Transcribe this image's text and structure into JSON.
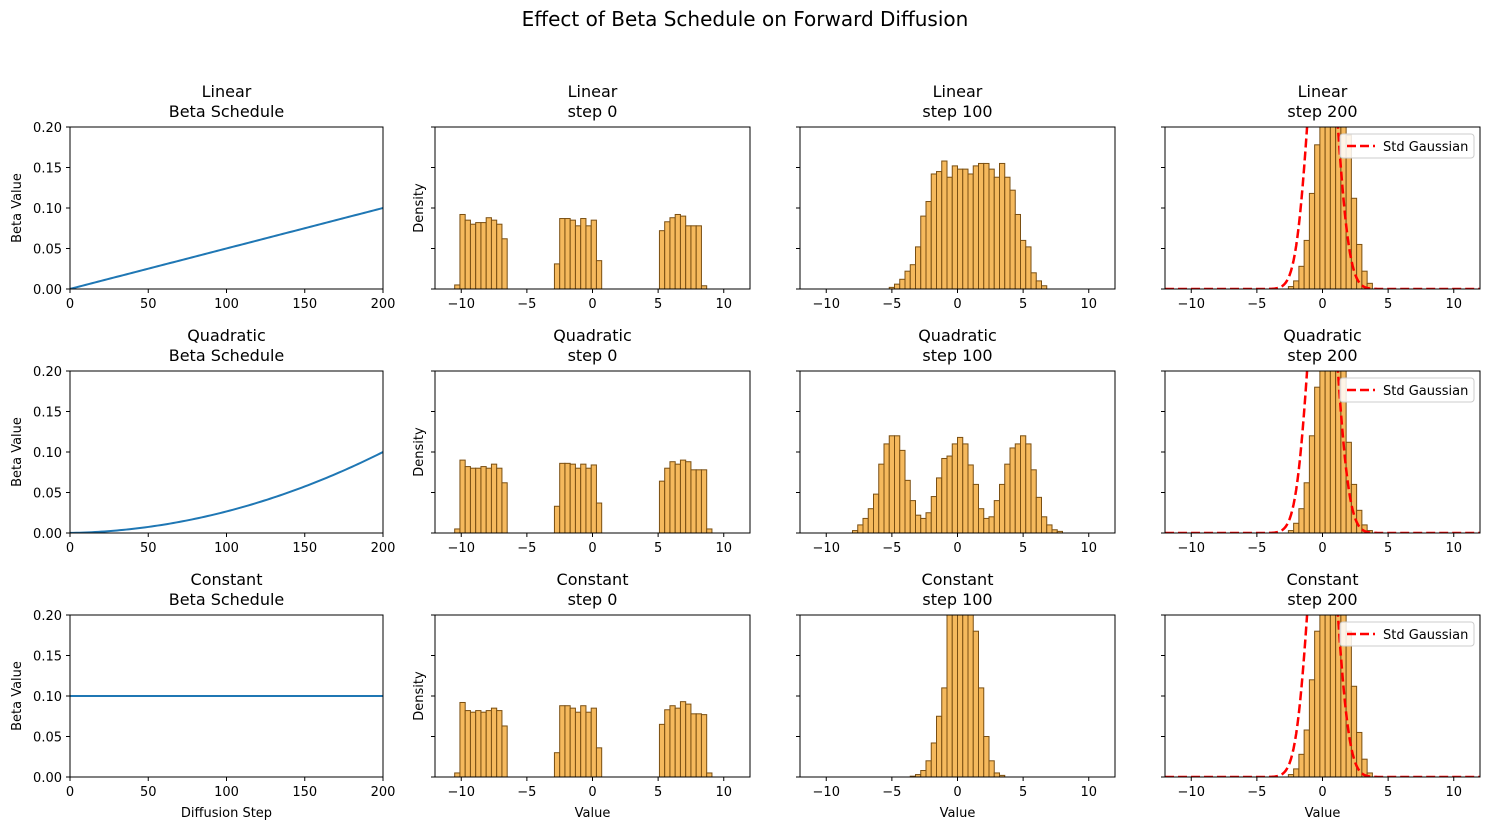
{
  "suptitle": "Effect of Beta Schedule on Forward Diffusion",
  "rows": [
    {
      "schedule": "Linear",
      "beta_title": "Linear\nBeta Schedule",
      "hist_titles": [
        "Linear\nstep 0",
        "Linear\nstep 100",
        "Linear\nstep 200"
      ]
    },
    {
      "schedule": "Quadratic",
      "beta_title": "Quadratic\nBeta Schedule",
      "hist_titles": [
        "Quadratic\nstep 0",
        "Quadratic\nstep 100",
        "Quadratic\nstep 200"
      ]
    },
    {
      "schedule": "Constant",
      "beta_title": "Constant\nBeta Schedule",
      "hist_titles": [
        "Constant\nstep 0",
        "Constant\nstep 100",
        "Constant\nstep 200"
      ]
    }
  ],
  "labels": {
    "beta_ylabel": "Beta Value",
    "hist_ylabel": "Density",
    "beta_xlabel": "Diffusion Step",
    "hist_xlabel": "Value",
    "legend_label": "Std Gaussian"
  },
  "colors": {
    "beta_line": "#1f77b4",
    "hist_fill": "#f5b95d",
    "hist_edge": "#7a4f12",
    "gaussian": "#ff0000"
  },
  "chart_data": [
    {
      "type": "line",
      "name": "Linear beta schedule",
      "x": [
        0,
        200
      ],
      "xlim": [
        0,
        200
      ],
      "ylim": [
        0,
        0.2
      ],
      "xticks": [
        "0",
        "50",
        "100",
        "150",
        "200"
      ],
      "yticks": [
        "0.00",
        "0.05",
        "0.10",
        "0.15",
        "0.20"
      ],
      "formula": "linear",
      "beta_start": 0.0001,
      "beta_end": 0.1
    },
    {
      "type": "line",
      "name": "Quadratic beta schedule",
      "x": [
        0,
        200
      ],
      "xlim": [
        0,
        200
      ],
      "ylim": [
        0,
        0.2
      ],
      "xticks": [
        "0",
        "50",
        "100",
        "150",
        "200"
      ],
      "yticks": [
        "0.00",
        "0.05",
        "0.10",
        "0.15",
        "0.20"
      ],
      "formula": "quadratic",
      "beta_start": 0.0001,
      "beta_end": 0.1
    },
    {
      "type": "line",
      "name": "Constant beta schedule",
      "x": [
        0,
        200
      ],
      "xlim": [
        0,
        200
      ],
      "ylim": [
        0,
        0.2
      ],
      "xticks": [
        "0",
        "50",
        "100",
        "150",
        "200"
      ],
      "yticks": [
        "0.00",
        "0.05",
        "0.10",
        "0.15",
        "0.20"
      ],
      "formula": "constant",
      "beta_value": 0.1
    },
    {
      "type": "bar",
      "name": "Linear step 0",
      "xlim": [
        -12,
        12
      ],
      "xticks": [
        "-10",
        "-5",
        "0",
        "5",
        "10"
      ],
      "ymax": 0.2,
      "bin_start": -10.5,
      "bin_width": 0.4,
      "values": [
        0.005,
        0.092,
        0.085,
        0.08,
        0.082,
        0.082,
        0.088,
        0.085,
        0.08,
        0.062,
        0,
        0,
        0,
        0,
        0,
        0,
        0,
        0,
        0,
        0.031,
        0.087,
        0.087,
        0.085,
        0.078,
        0.087,
        0.078,
        0.085,
        0.035,
        0,
        0,
        0,
        0,
        0,
        0,
        0,
        0,
        0,
        0,
        0,
        0.072,
        0.083,
        0.088,
        0.092,
        0.09,
        0.078,
        0.078,
        0.078,
        0.004
      ]
    },
    {
      "type": "bar",
      "name": "Linear step 100",
      "xlim": [
        -12,
        12
      ],
      "xticks": [
        "-10",
        "-5",
        "0",
        "5",
        "10"
      ],
      "ymax": 0.2,
      "bin_start": -5.2,
      "bin_width": 0.4,
      "values": [
        0.002,
        0.006,
        0.012,
        0.022,
        0.03,
        0.052,
        0.09,
        0.108,
        0.142,
        0.145,
        0.158,
        0.138,
        0.152,
        0.148,
        0.148,
        0.142,
        0.152,
        0.155,
        0.155,
        0.148,
        0.138,
        0.155,
        0.138,
        0.122,
        0.092,
        0.06,
        0.052,
        0.02,
        0.01,
        0.004
      ]
    },
    {
      "type": "bar",
      "name": "Linear step 200",
      "xlim": [
        -12,
        12
      ],
      "xticks": [
        "-10",
        "-5",
        "0",
        "5",
        "10"
      ],
      "ymax": 0.2,
      "bin_start": -2.6,
      "bin_width": 0.4,
      "gaussian": true,
      "values": [
        0.003,
        0.01,
        0.028,
        0.06,
        0.118,
        0.178,
        0.23,
        0.3,
        0.3,
        0.3,
        0.24,
        0.19,
        0.112,
        0.055,
        0.022,
        0.007
      ]
    },
    {
      "type": "bar",
      "name": "Quadratic step 0",
      "xlim": [
        -12,
        12
      ],
      "xticks": [
        "-10",
        "-5",
        "0",
        "5",
        "10"
      ],
      "ymax": 0.2,
      "bin_start": -10.5,
      "bin_width": 0.4,
      "values": [
        0.005,
        0.09,
        0.082,
        0.08,
        0.08,
        0.082,
        0.08,
        0.085,
        0.08,
        0.062,
        0,
        0,
        0,
        0,
        0,
        0,
        0,
        0,
        0,
        0.033,
        0.086,
        0.086,
        0.085,
        0.08,
        0.085,
        0.08,
        0.084,
        0.037,
        0,
        0,
        0,
        0,
        0,
        0,
        0,
        0,
        0,
        0,
        0,
        0.064,
        0.08,
        0.088,
        0.085,
        0.09,
        0.088,
        0.078,
        0.078,
        0.078,
        0.005
      ]
    },
    {
      "type": "bar",
      "name": "Quadratic step 100",
      "xlim": [
        -12,
        12
      ],
      "xticks": [
        "-10",
        "-5",
        "0",
        "5",
        "10"
      ],
      "ymax": 0.2,
      "bin_start": -8.0,
      "bin_width": 0.4,
      "values": [
        0.003,
        0.01,
        0.018,
        0.03,
        0.048,
        0.085,
        0.11,
        0.12,
        0.12,
        0.102,
        0.065,
        0.04,
        0.022,
        0.018,
        0.025,
        0.045,
        0.068,
        0.092,
        0.095,
        0.11,
        0.118,
        0.11,
        0.084,
        0.06,
        0.03,
        0.018,
        0.02,
        0.04,
        0.06,
        0.085,
        0.105,
        0.11,
        0.12,
        0.11,
        0.078,
        0.044,
        0.02,
        0.01,
        0.004,
        0.002
      ]
    },
    {
      "type": "bar",
      "name": "Quadratic step 200",
      "xlim": [
        -12,
        12
      ],
      "xticks": [
        "-10",
        "-5",
        "0",
        "5",
        "10"
      ],
      "ymax": 0.2,
      "bin_start": -2.6,
      "bin_width": 0.4,
      "gaussian": true,
      "values": [
        0.003,
        0.012,
        0.03,
        0.062,
        0.12,
        0.18,
        0.24,
        0.3,
        0.3,
        0.3,
        0.235,
        0.112,
        0.06,
        0.028,
        0.01,
        0.003
      ]
    },
    {
      "type": "bar",
      "name": "Constant step 0",
      "xlim": [
        -12,
        12
      ],
      "xticks": [
        "-10",
        "-5",
        "0",
        "5",
        "10"
      ],
      "ymax": 0.2,
      "bin_start": -10.5,
      "bin_width": 0.4,
      "values": [
        0.005,
        0.092,
        0.082,
        0.08,
        0.082,
        0.08,
        0.082,
        0.085,
        0.082,
        0.063,
        0,
        0,
        0,
        0,
        0,
        0,
        0,
        0,
        0,
        0.03,
        0.088,
        0.088,
        0.085,
        0.08,
        0.088,
        0.08,
        0.085,
        0.036,
        0,
        0,
        0,
        0,
        0,
        0,
        0,
        0,
        0,
        0,
        0,
        0.065,
        0.083,
        0.088,
        0.085,
        0.093,
        0.09,
        0.078,
        0.078,
        0.077,
        0.005
      ]
    },
    {
      "type": "bar",
      "name": "Constant step 100",
      "xlim": [
        -12,
        12
      ],
      "xticks": [
        "-10",
        "-5",
        "0",
        "5",
        "10"
      ],
      "ymax": 0.2,
      "bin_start": -3.6,
      "bin_width": 0.4,
      "values": [
        0.001,
        0.003,
        0.008,
        0.02,
        0.042,
        0.075,
        0.11,
        0.3,
        0.3,
        0.3,
        0.3,
        0.3,
        0.18,
        0.11,
        0.05,
        0.02,
        0.005,
        0.002
      ]
    },
    {
      "type": "bar",
      "name": "Constant step 200",
      "xlim": [
        -12,
        12
      ],
      "xticks": [
        "-10",
        "-5",
        "0",
        "5",
        "10"
      ],
      "ymax": 0.2,
      "bin_start": -2.6,
      "bin_width": 0.4,
      "gaussian": true,
      "values": [
        0.003,
        0.01,
        0.028,
        0.058,
        0.12,
        0.18,
        0.232,
        0.3,
        0.3,
        0.3,
        0.235,
        0.18,
        0.112,
        0.055,
        0.022,
        0.005
      ]
    }
  ]
}
